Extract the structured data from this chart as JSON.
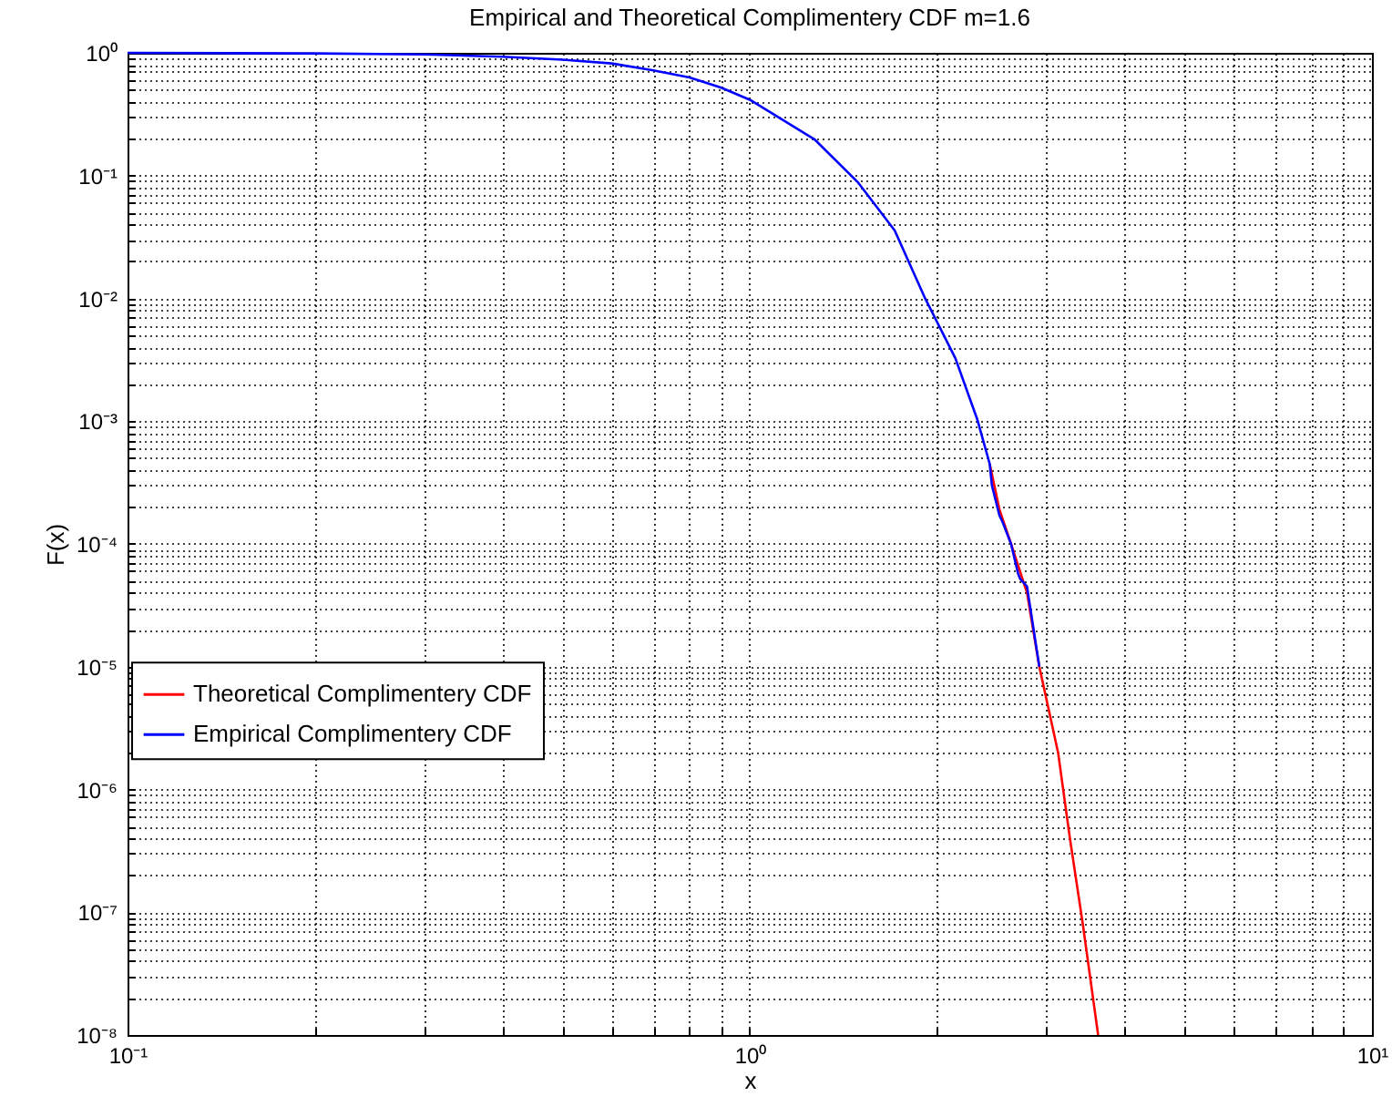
{
  "chart_data": {
    "type": "line",
    "title": "Empirical and Theoretical Complimentery CDF m=1.6",
    "xlabel": "x",
    "ylabel": "F(x)",
    "log": "xy",
    "grid": true,
    "legend": "left",
    "xlim": [
      0.1,
      10
    ],
    "ylim": [
      1e-08,
      1
    ],
    "xticks": [
      {
        "value": 0.1,
        "label": "10⁻¹"
      },
      {
        "value": 0.2,
        "label": null
      },
      {
        "value": 0.3,
        "label": null
      },
      {
        "value": 0.4,
        "label": null
      },
      {
        "value": 0.5,
        "label": null
      },
      {
        "value": 0.6,
        "label": null
      },
      {
        "value": 0.7,
        "label": null
      },
      {
        "value": 0.8,
        "label": null
      },
      {
        "value": 0.9,
        "label": null
      },
      {
        "value": 1,
        "label": "10⁰"
      },
      {
        "value": 2,
        "label": null
      },
      {
        "value": 3,
        "label": null
      },
      {
        "value": 4,
        "label": null
      },
      {
        "value": 5,
        "label": null
      },
      {
        "value": 6,
        "label": null
      },
      {
        "value": 7,
        "label": null
      },
      {
        "value": 8,
        "label": null
      },
      {
        "value": 9,
        "label": null
      },
      {
        "value": 10,
        "label": "10¹"
      }
    ],
    "yticks": [
      {
        "value": 1e-08,
        "label": "10⁻⁸"
      },
      {
        "value": 2e-08,
        "label": null
      },
      {
        "value": 3e-08,
        "label": null
      },
      {
        "value": 4e-08,
        "label": null
      },
      {
        "value": 5e-08,
        "label": null
      },
      {
        "value": 6e-08,
        "label": null
      },
      {
        "value": 7e-08,
        "label": null
      },
      {
        "value": 8e-08,
        "label": null
      },
      {
        "value": 9e-08,
        "label": null
      },
      {
        "value": 1e-07,
        "label": "10⁻⁷"
      },
      {
        "value": 2e-07,
        "label": null
      },
      {
        "value": 3e-07,
        "label": null
      },
      {
        "value": 4e-07,
        "label": null
      },
      {
        "value": 5e-07,
        "label": null
      },
      {
        "value": 6e-07,
        "label": null
      },
      {
        "value": 7e-07,
        "label": null
      },
      {
        "value": 8e-07,
        "label": null
      },
      {
        "value": 9e-07,
        "label": null
      },
      {
        "value": 1e-06,
        "label": "10⁻⁶"
      },
      {
        "value": 2e-06,
        "label": null
      },
      {
        "value": 3e-06,
        "label": null
      },
      {
        "value": 4e-06,
        "label": null
      },
      {
        "value": 5e-06,
        "label": null
      },
      {
        "value": 6e-06,
        "label": null
      },
      {
        "value": 7e-06,
        "label": null
      },
      {
        "value": 8e-06,
        "label": null
      },
      {
        "value": 9e-06,
        "label": null
      },
      {
        "value": 1e-05,
        "label": "10⁻⁵"
      },
      {
        "value": 2e-05,
        "label": null
      },
      {
        "value": 3e-05,
        "label": null
      },
      {
        "value": 4e-05,
        "label": null
      },
      {
        "value": 5e-05,
        "label": null
      },
      {
        "value": 6e-05,
        "label": null
      },
      {
        "value": 7e-05,
        "label": null
      },
      {
        "value": 8e-05,
        "label": null
      },
      {
        "value": 9e-05,
        "label": null
      },
      {
        "value": 0.0001,
        "label": "10⁻⁴"
      },
      {
        "value": 0.0002,
        "label": null
      },
      {
        "value": 0.0003,
        "label": null
      },
      {
        "value": 0.0004,
        "label": null
      },
      {
        "value": 0.0005,
        "label": null
      },
      {
        "value": 0.0006,
        "label": null
      },
      {
        "value": 0.0007,
        "label": null
      },
      {
        "value": 0.0008,
        "label": null
      },
      {
        "value": 0.0009,
        "label": null
      },
      {
        "value": 0.001,
        "label": "10⁻³"
      },
      {
        "value": 0.002,
        "label": null
      },
      {
        "value": 0.003,
        "label": null
      },
      {
        "value": 0.004,
        "label": null
      },
      {
        "value": 0.005,
        "label": null
      },
      {
        "value": 0.006,
        "label": null
      },
      {
        "value": 0.007,
        "label": null
      },
      {
        "value": 0.008,
        "label": null
      },
      {
        "value": 0.009,
        "label": null
      },
      {
        "value": 0.01,
        "label": "10⁻²"
      },
      {
        "value": 0.02,
        "label": null
      },
      {
        "value": 0.03,
        "label": null
      },
      {
        "value": 0.04,
        "label": null
      },
      {
        "value": 0.05,
        "label": null
      },
      {
        "value": 0.06,
        "label": null
      },
      {
        "value": 0.07,
        "label": null
      },
      {
        "value": 0.08,
        "label": null
      },
      {
        "value": 0.09,
        "label": null
      },
      {
        "value": 0.1,
        "label": "10⁻¹"
      },
      {
        "value": 0.2,
        "label": null
      },
      {
        "value": 0.3,
        "label": null
      },
      {
        "value": 0.4,
        "label": null
      },
      {
        "value": 0.5,
        "label": null
      },
      {
        "value": 0.6,
        "label": null
      },
      {
        "value": 0.7,
        "label": null
      },
      {
        "value": 0.8,
        "label": null
      },
      {
        "value": 0.9,
        "label": null
      },
      {
        "value": 1,
        "label": "10⁰"
      }
    ],
    "series": [
      {
        "name": "Theoretical Complimentery CDF",
        "color": "#ff0000",
        "x": [
          2.43,
          2.52,
          2.63,
          2.79,
          2.92,
          3.13,
          3.27,
          3.43,
          3.63
        ],
        "values": [
          0.00045,
          0.00019,
          0.0001,
          4e-05,
          1e-05,
          2e-06,
          4e-07,
          8e-08,
          1e-08
        ]
      },
      {
        "name": "Empirical Complimentery CDF",
        "color": "#0000ff",
        "x": [
          0.1,
          0.2,
          0.3,
          0.4,
          0.5,
          0.6,
          0.7,
          0.8,
          0.9,
          1.0,
          1.27,
          1.49,
          1.71,
          1.91,
          2.14,
          2.32,
          2.43,
          2.45,
          2.52,
          2.55,
          2.63,
          2.7,
          2.72,
          2.79,
          2.92
        ],
        "values": [
          1,
          0.99,
          0.97,
          0.93,
          0.88,
          0.82,
          0.72,
          0.63,
          0.52,
          0.415,
          0.198,
          0.089,
          0.0357,
          0.0102,
          0.00326,
          0.00104,
          0.00045,
          0.0003,
          0.00017,
          0.00015,
          0.0001,
          5.7e-05,
          5.2e-05,
          4.5e-05,
          1e-05
        ]
      }
    ]
  }
}
